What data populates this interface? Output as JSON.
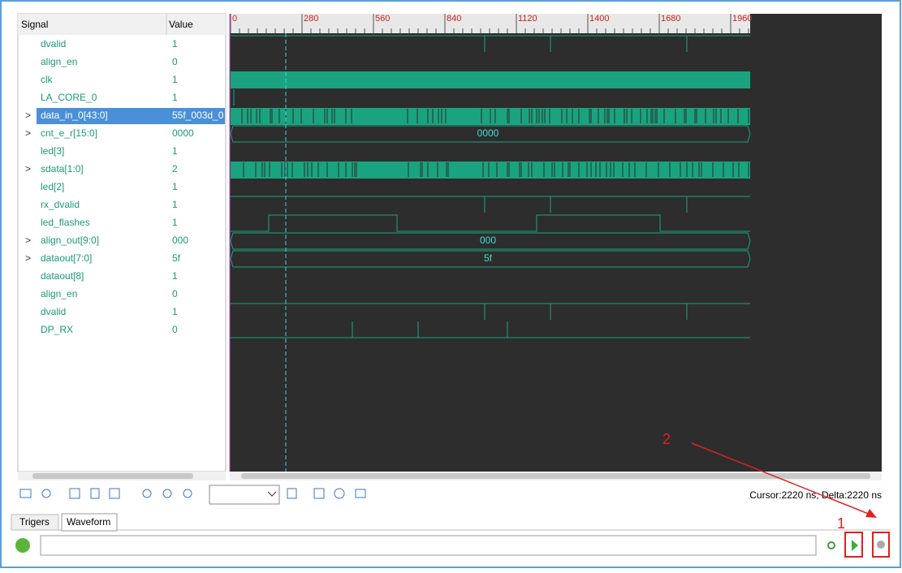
{
  "panel": {
    "signal_header": "Signal",
    "value_header": "Value",
    "signals": [
      {
        "name": "dvalid",
        "value": "1"
      },
      {
        "name": "align_en",
        "value": "0"
      },
      {
        "name": "clk",
        "value": "1"
      },
      {
        "name": "LA_CORE_0",
        "value": "1"
      },
      {
        "name": "data_in_0[43:0]",
        "value": "55f_003d_0",
        "expander": ">"
      },
      {
        "name": "cnt_e_r[15:0]",
        "value": "0000",
        "expander": ">"
      },
      {
        "name": "led[3]",
        "value": "1"
      },
      {
        "name": "sdata[1:0]",
        "value": "2",
        "expander": ">"
      },
      {
        "name": "led[2]",
        "value": "1"
      },
      {
        "name": "rx_dvalid",
        "value": "1"
      },
      {
        "name": "led_flashes",
        "value": "1"
      },
      {
        "name": "align_out[9:0]",
        "value": "000",
        "expander": ">"
      },
      {
        "name": "dataout[7:0]",
        "value": "5f",
        "expander": ">"
      },
      {
        "name": "dataout[8]",
        "value": "1"
      },
      {
        "name": "align_en",
        "value": "0"
      },
      {
        "name": "dvalid",
        "value": "1"
      },
      {
        "name": "DP_RX",
        "value": "0"
      }
    ]
  },
  "ruler": {
    "labels": [
      "0",
      "280",
      "560",
      "840",
      "1120",
      "1400",
      "1680",
      "1960"
    ]
  },
  "bus_labels": {
    "cnt_e_r": "0000",
    "align_out": "000",
    "dataout": "5f"
  },
  "status": "Cursor:2220 ns, Delta:2220 ns",
  "tabs": [
    "Trigers",
    "Waveform"
  ],
  "annotations": [
    "1",
    "2"
  ]
}
